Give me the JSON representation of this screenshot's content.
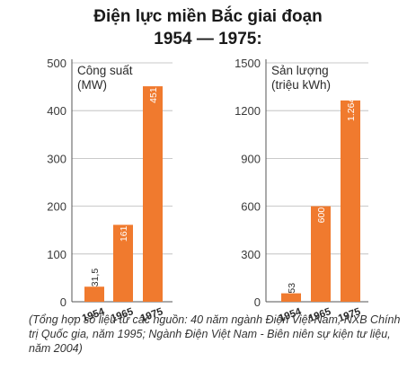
{
  "title": {
    "line1": "Điện lực miền Bắc giai đoạn",
    "line2": "1954 — 1975:"
  },
  "chart_data": [
    {
      "type": "bar",
      "ylabel_line1": "Công suất",
      "ylabel_line2": "(MW)",
      "categories": [
        "1954",
        "1965",
        "1975"
      ],
      "values": [
        31.5,
        161,
        451
      ],
      "value_labels": [
        "31,5",
        "161",
        "451"
      ],
      "ylim": [
        0,
        500
      ],
      "yticks": [
        0,
        100,
        200,
        300,
        400,
        500
      ],
      "grid": true,
      "bar_color": "#f07a2e"
    },
    {
      "type": "bar",
      "ylabel_line1": "Sản lượng",
      "ylabel_line2": "(triệu kWh)",
      "categories": [
        "1954",
        "1965",
        "1975"
      ],
      "values": [
        53,
        600,
        1264
      ],
      "value_labels": [
        "53",
        "600",
        "1.264"
      ],
      "ylim": [
        0,
        1500
      ],
      "yticks": [
        0,
        300,
        600,
        900,
        1200,
        1500
      ],
      "grid": true,
      "bar_color": "#f07a2e"
    }
  ],
  "source_note": "(Tổng hợp số liệu từ các nguồn: 40 năm ngành Điện Việt Nam, NXB Chính trị Quốc gia, năm 1995; Ngành Điện Việt Nam - Biên niên sự kiện tư liệu, năm 2004)"
}
